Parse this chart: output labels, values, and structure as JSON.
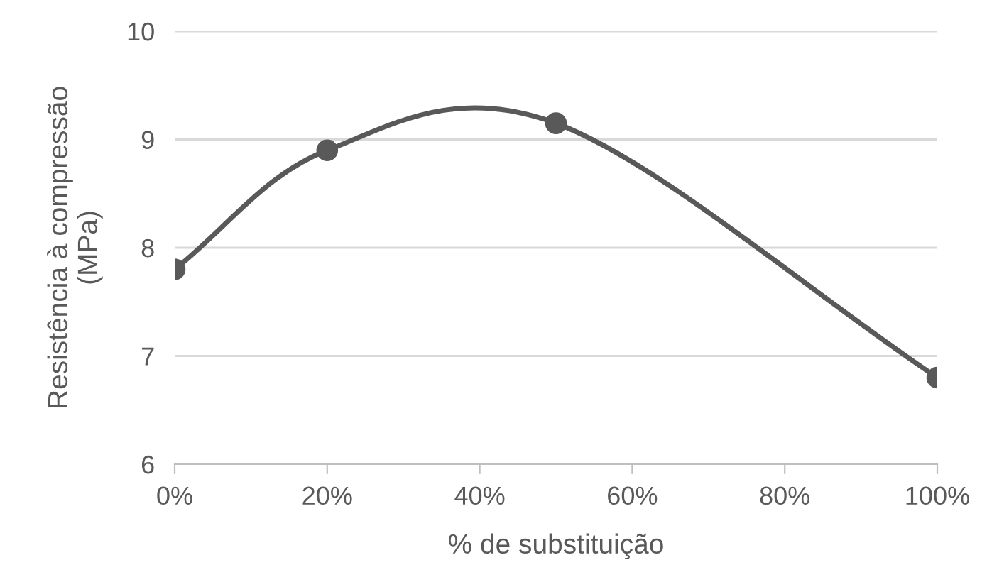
{
  "chart_data": {
    "type": "line",
    "xlabel": "% de substituição",
    "ylabel": "Resistência à compressão\n(MPa)",
    "x": [
      0,
      20,
      50,
      100
    ],
    "series": [
      {
        "color": "#595959",
        "values": [
          7.8,
          8.9,
          9.15,
          6.8
        ]
      }
    ],
    "xlim": [
      0,
      100
    ],
    "xticks": [
      {
        "value": 0,
        "label": "0%"
      },
      {
        "value": 20,
        "label": "20%"
      },
      {
        "value": 40,
        "label": "40%"
      },
      {
        "value": 60,
        "label": "60%"
      },
      {
        "value": 80,
        "label": "80%"
      },
      {
        "value": 100,
        "label": "100%"
      }
    ],
    "ylim": [
      6,
      10
    ],
    "yticks": [
      6,
      7,
      8,
      9,
      10
    ],
    "grid": "y",
    "marker": "circle",
    "line_style": "solid"
  }
}
